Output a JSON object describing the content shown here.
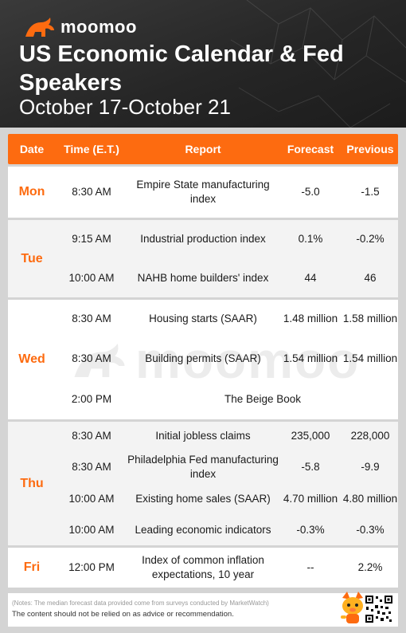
{
  "header": {
    "brand": "moomoo",
    "title": "US Economic Calendar & Fed Speakers",
    "date_range": "October 17-October 21"
  },
  "table": {
    "columns": [
      "Date",
      "Time (E.T.)",
      "Report",
      "Forecast",
      "Previous"
    ],
    "days": [
      {
        "day": "Mon",
        "events": [
          {
            "time": "8:30 AM",
            "report": "Empire State manufacturing index",
            "forecast": "-5.0",
            "previous": "-1.5"
          }
        ]
      },
      {
        "day": "Tue",
        "events": [
          {
            "time": "9:15 AM",
            "report": "Industrial production index",
            "forecast": "0.1%",
            "previous": "-0.2%"
          },
          {
            "time": "10:00 AM",
            "report": "NAHB home builders' index",
            "forecast": "44",
            "previous": "46"
          }
        ]
      },
      {
        "day": "Wed",
        "events": [
          {
            "time": "8:30 AM",
            "report": "Housing starts (SAAR)",
            "forecast": "1.48 million",
            "previous": "1.58 million"
          },
          {
            "time": "8:30 AM",
            "report": "Building permits (SAAR)",
            "forecast": "1.54 million",
            "previous": "1.54 million"
          },
          {
            "time": "2:00 PM",
            "report": "The Beige Book",
            "forecast": "",
            "previous": ""
          }
        ]
      },
      {
        "day": "Thu",
        "events": [
          {
            "time": "8:30 AM",
            "report": "Initial jobless claims",
            "forecast": "235,000",
            "previous": "228,000"
          },
          {
            "time": "8:30 AM",
            "report": "Philadelphia Fed manufacturing index",
            "forecast": "-5.8",
            "previous": "-9.9"
          },
          {
            "time": "10:00 AM",
            "report": "Existing home sales (SAAR)",
            "forecast": "4.70 million",
            "previous": "4.80 million"
          },
          {
            "time": "10:00 AM",
            "report": "Leading economic indicators",
            "forecast": "-0.3%",
            "previous": "-0.3%"
          }
        ]
      },
      {
        "day": "Fri",
        "events": [
          {
            "time": "12:00 PM",
            "report": "Index of common inflation expectations, 10 year",
            "forecast": "--",
            "previous": "2.2%"
          }
        ]
      }
    ]
  },
  "footer": {
    "note": "(Notes: The median forecast data provided come from surveys conducted by MarketWatch)",
    "disclaimer": "The content should not be relied on as advice or recommendation."
  },
  "colors": {
    "accent": "#fd6b10",
    "header_bg": "#262626",
    "row_white": "#ffffff",
    "row_grey": "#f3f3f3"
  },
  "icons": [
    "moomoo-bull-logo-icon",
    "mascot-icon",
    "qr-code-icon"
  ]
}
